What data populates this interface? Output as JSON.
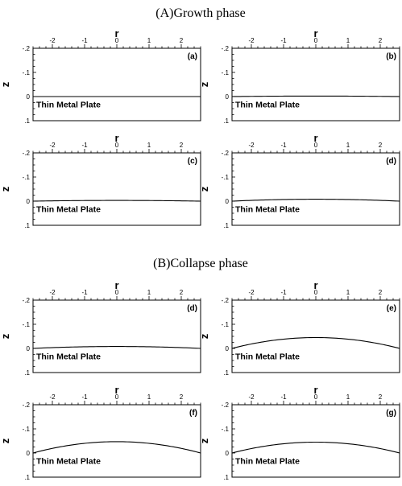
{
  "figure": {
    "section_a_title": "(A)Growth phase",
    "section_b_title": "(B)Collapse phase"
  },
  "chart_data": [
    {
      "type": "line",
      "panel": "(a)",
      "section": "A",
      "xlabel": "r",
      "ylabel": "z",
      "xlim": [
        -2.6,
        2.6
      ],
      "ylim": [
        -0.2,
        0.1
      ],
      "y_inverted": true,
      "xticks": [
        -2,
        -1,
        0,
        1,
        2
      ],
      "yticks": [
        -0.2,
        -0.1,
        0,
        0.1
      ],
      "annotation": "Thin Metal Plate",
      "series": [
        {
          "x": [
            -2.6,
            0,
            2.6
          ],
          "y": [
            0.0,
            0.0,
            0.0
          ]
        }
      ]
    },
    {
      "type": "line",
      "panel": "(b)",
      "section": "A",
      "xlabel": "r",
      "ylabel": "z",
      "xlim": [
        -2.6,
        2.6
      ],
      "ylim": [
        -0.2,
        0.1
      ],
      "y_inverted": true,
      "xticks": [
        -2,
        -1,
        0,
        1,
        2
      ],
      "yticks": [
        -0.2,
        -0.1,
        0,
        0.1
      ],
      "annotation": "Thin Metal Plate",
      "series": [
        {
          "x": [
            -2.6,
            0,
            2.6
          ],
          "y": [
            0.0,
            -0.002,
            0.0
          ]
        }
      ]
    },
    {
      "type": "line",
      "panel": "(c)",
      "section": "A",
      "xlabel": "r",
      "ylabel": "z",
      "xlim": [
        -2.6,
        2.6
      ],
      "ylim": [
        -0.2,
        0.1
      ],
      "y_inverted": true,
      "xticks": [
        -2,
        -1,
        0,
        1,
        2
      ],
      "yticks": [
        -0.2,
        -0.1,
        0,
        0.1
      ],
      "annotation": "Thin Metal Plate",
      "series": [
        {
          "x": [
            -2.6,
            0,
            2.6
          ],
          "y": [
            0.0,
            -0.003,
            0.0
          ]
        }
      ]
    },
    {
      "type": "line",
      "panel": "(d)",
      "section": "A",
      "xlabel": "r",
      "ylabel": "z",
      "xlim": [
        -2.6,
        2.6
      ],
      "ylim": [
        -0.2,
        0.1
      ],
      "y_inverted": true,
      "xticks": [
        -2,
        -1,
        0,
        1,
        2
      ],
      "yticks": [
        -0.2,
        -0.1,
        0,
        0.1
      ],
      "annotation": "Thin Metal Plate",
      "series": [
        {
          "x": [
            -2.6,
            0,
            2.6
          ],
          "y": [
            0.0,
            -0.008,
            0.0
          ]
        }
      ]
    },
    {
      "type": "line",
      "panel": "(d)",
      "section": "B",
      "xlabel": "r",
      "ylabel": "z",
      "xlim": [
        -2.6,
        2.6
      ],
      "ylim": [
        -0.2,
        0.1
      ],
      "y_inverted": true,
      "xticks": [
        -2,
        -1,
        0,
        1,
        2
      ],
      "yticks": [
        -0.2,
        -0.1,
        0,
        0.1
      ],
      "annotation": "Thin Metal Plate",
      "series": [
        {
          "x": [
            -2.6,
            0,
            2.6
          ],
          "y": [
            0.0,
            -0.008,
            0.0
          ]
        }
      ]
    },
    {
      "type": "line",
      "panel": "(e)",
      "section": "B",
      "xlabel": "r",
      "ylabel": "z",
      "xlim": [
        -2.6,
        2.6
      ],
      "ylim": [
        -0.2,
        0.1
      ],
      "y_inverted": true,
      "xticks": [
        -2,
        -1,
        0,
        1,
        2
      ],
      "yticks": [
        -0.2,
        -0.1,
        0,
        0.1
      ],
      "annotation": "Thin Metal Plate",
      "series": [
        {
          "x": [
            -2.6,
            0,
            2.6
          ],
          "y": [
            0.0,
            -0.045,
            0.0
          ]
        }
      ]
    },
    {
      "type": "line",
      "panel": "(f)",
      "section": "B",
      "xlabel": "r",
      "ylabel": "z",
      "xlim": [
        -2.6,
        2.6
      ],
      "ylim": [
        -0.2,
        0.1
      ],
      "y_inverted": true,
      "xticks": [
        -2,
        -1,
        0,
        1,
        2
      ],
      "yticks": [
        -0.2,
        -0.1,
        0,
        0.1
      ],
      "annotation": "Thin Metal Plate",
      "series": [
        {
          "x": [
            -2.6,
            0,
            2.6
          ],
          "y": [
            0.0,
            -0.047,
            0.0
          ]
        }
      ]
    },
    {
      "type": "line",
      "panel": "(g)",
      "section": "B",
      "xlabel": "r",
      "ylabel": "z",
      "xlim": [
        -2.6,
        2.6
      ],
      "ylim": [
        -0.2,
        0.1
      ],
      "y_inverted": true,
      "xticks": [
        -2,
        -1,
        0,
        1,
        2
      ],
      "yticks": [
        -0.2,
        -0.1,
        0,
        0.1
      ],
      "annotation": "Thin Metal Plate",
      "series": [
        {
          "x": [
            -2.6,
            0,
            2.6
          ],
          "y": [
            0.0,
            -0.045,
            0.0
          ]
        }
      ]
    }
  ]
}
